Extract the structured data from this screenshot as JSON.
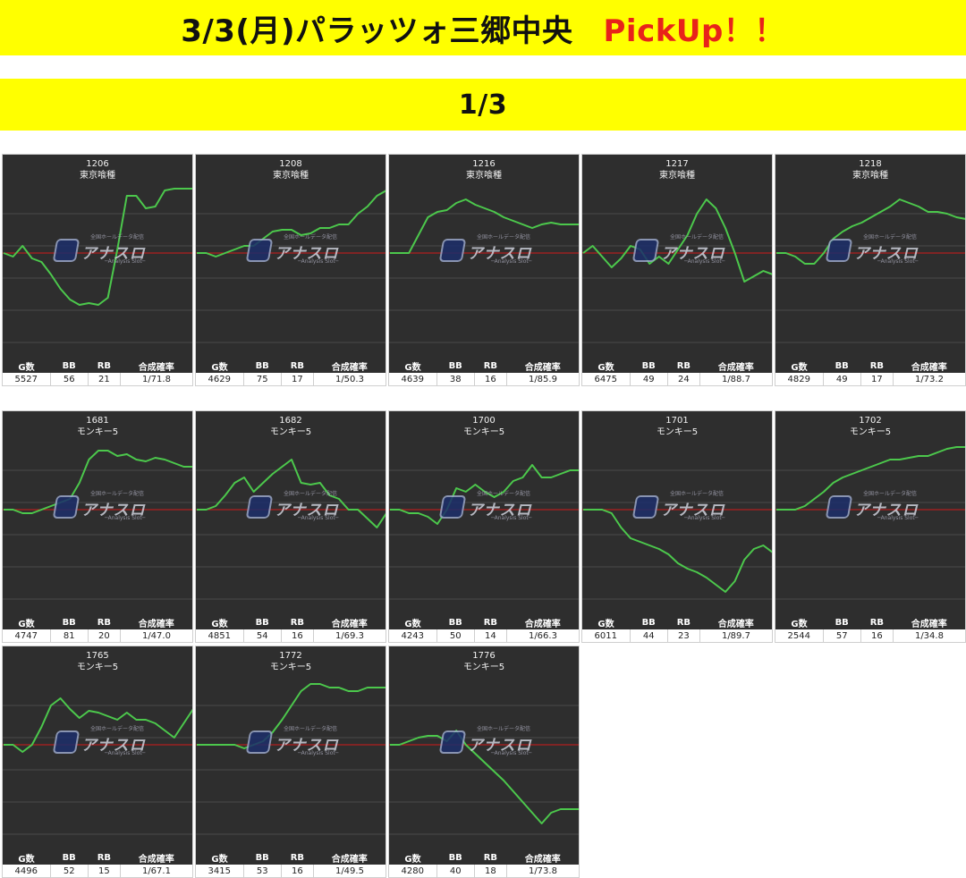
{
  "header": {
    "title": "3/3(月)パラッツォ三郷中央",
    "pickup": "PickUp！！",
    "page": "1/3"
  },
  "table_headers": {
    "g": "G数",
    "bb": "BB",
    "rb": "RB",
    "rate": "合成確率"
  },
  "watermark": {
    "text": "アナスロ",
    "top": "全国ホールデータ配信",
    "sub": "─Analysis Slot─"
  },
  "colors": {
    "line": "#4cc84c",
    "baseline": "#d11a1a",
    "panel": "#2e2e2e",
    "banner": "#ffff00"
  },
  "machines": [
    {
      "no": "1206",
      "name": "東京喰種",
      "g": "5527",
      "bb": "56",
      "rb": "21",
      "rate": "1/71.8",
      "curve": [
        0.4,
        0.42,
        0.36,
        0.43,
        0.45,
        0.52,
        0.6,
        0.66,
        0.69,
        0.68,
        0.69,
        0.65,
        0.38,
        0.08,
        0.08,
        0.15,
        0.14,
        0.05,
        0.04,
        0.04,
        0.04
      ]
    },
    {
      "no": "1208",
      "name": "東京喰種",
      "g": "4629",
      "bb": "75",
      "rb": "17",
      "rate": "1/50.3",
      "curve": [
        0.4,
        0.4,
        0.42,
        0.4,
        0.38,
        0.36,
        0.36,
        0.32,
        0.28,
        0.27,
        0.27,
        0.3,
        0.29,
        0.26,
        0.26,
        0.24,
        0.24,
        0.18,
        0.14,
        0.08,
        0.05
      ]
    },
    {
      "no": "1216",
      "name": "東京喰種",
      "g": "4639",
      "bb": "38",
      "rb": "16",
      "rate": "1/85.9",
      "curve": [
        0.4,
        0.4,
        0.4,
        0.3,
        0.2,
        0.17,
        0.16,
        0.12,
        0.1,
        0.13,
        0.15,
        0.17,
        0.2,
        0.22,
        0.24,
        0.26,
        0.24,
        0.23,
        0.24,
        0.24,
        0.24
      ]
    },
    {
      "no": "1217",
      "name": "東京喰種",
      "g": "6475",
      "bb": "49",
      "rb": "24",
      "rate": "1/88.7",
      "curve": [
        0.4,
        0.36,
        0.42,
        0.48,
        0.43,
        0.36,
        0.38,
        0.46,
        0.42,
        0.46,
        0.38,
        0.3,
        0.18,
        0.1,
        0.15,
        0.26,
        0.4,
        0.56,
        0.53,
        0.5,
        0.52
      ]
    },
    {
      "no": "1218",
      "name": "東京喰種",
      "g": "4829",
      "bb": "49",
      "rb": "17",
      "rate": "1/73.2",
      "curve": [
        0.4,
        0.4,
        0.42,
        0.46,
        0.46,
        0.4,
        0.32,
        0.28,
        0.25,
        0.23,
        0.2,
        0.17,
        0.14,
        0.1,
        0.12,
        0.14,
        0.17,
        0.17,
        0.18,
        0.2,
        0.21
      ]
    },
    {
      "no": "1681",
      "name": "モンキー5",
      "g": "4747",
      "bb": "81",
      "rb": "20",
      "rate": "1/47.0",
      "curve": [
        0.4,
        0.4,
        0.42,
        0.42,
        0.4,
        0.38,
        0.36,
        0.34,
        0.25,
        0.12,
        0.07,
        0.07,
        0.1,
        0.09,
        0.12,
        0.13,
        0.11,
        0.12,
        0.14,
        0.16,
        0.16
      ]
    },
    {
      "no": "1682",
      "name": "モンキー5",
      "g": "4851",
      "bb": "54",
      "rb": "16",
      "rate": "1/69.3",
      "curve": [
        0.4,
        0.4,
        0.38,
        0.32,
        0.25,
        0.22,
        0.3,
        0.25,
        0.2,
        0.16,
        0.12,
        0.25,
        0.26,
        0.25,
        0.32,
        0.34,
        0.4,
        0.4,
        0.45,
        0.5,
        0.42
      ]
    },
    {
      "no": "1700",
      "name": "モンキー5",
      "g": "4243",
      "bb": "50",
      "rb": "14",
      "rate": "1/66.3",
      "curve": [
        0.4,
        0.4,
        0.42,
        0.42,
        0.44,
        0.48,
        0.4,
        0.28,
        0.3,
        0.26,
        0.3,
        0.33,
        0.3,
        0.24,
        0.22,
        0.15,
        0.22,
        0.22,
        0.2,
        0.18,
        0.18
      ]
    },
    {
      "no": "1701",
      "name": "モンキー5",
      "g": "6011",
      "bb": "44",
      "rb": "23",
      "rate": "1/89.7",
      "curve": [
        0.4,
        0.4,
        0.4,
        0.42,
        0.5,
        0.56,
        0.58,
        0.6,
        0.62,
        0.65,
        0.7,
        0.73,
        0.75,
        0.78,
        0.82,
        0.86,
        0.8,
        0.68,
        0.62,
        0.6,
        0.64
      ]
    },
    {
      "no": "1702",
      "name": "モンキー5",
      "g": "2544",
      "bb": "57",
      "rb": "16",
      "rate": "1/34.8",
      "curve": [
        0.4,
        0.4,
        0.4,
        0.38,
        0.34,
        0.3,
        0.25,
        0.22,
        0.2,
        0.18,
        0.16,
        0.14,
        0.12,
        0.12,
        0.11,
        0.1,
        0.1,
        0.08,
        0.06,
        0.05,
        0.05
      ]
    },
    {
      "no": "1765",
      "name": "モンキー5",
      "g": "4496",
      "bb": "52",
      "rb": "15",
      "rate": "1/67.1",
      "curve": [
        0.4,
        0.4,
        0.44,
        0.4,
        0.3,
        0.18,
        0.14,
        0.2,
        0.25,
        0.21,
        0.22,
        0.24,
        0.26,
        0.22,
        0.26,
        0.26,
        0.28,
        0.32,
        0.36,
        0.28,
        0.2
      ]
    },
    {
      "no": "1772",
      "name": "モンキー5",
      "g": "3415",
      "bb": "53",
      "rb": "16",
      "rate": "1/49.5",
      "curve": [
        0.4,
        0.4,
        0.4,
        0.4,
        0.4,
        0.42,
        0.4,
        0.38,
        0.33,
        0.26,
        0.18,
        0.1,
        0.06,
        0.06,
        0.08,
        0.08,
        0.1,
        0.1,
        0.08,
        0.08,
        0.08
      ]
    },
    {
      "no": "1776",
      "name": "モンキー5",
      "g": "4280",
      "bb": "40",
      "rb": "18",
      "rate": "1/73.8",
      "curve": [
        0.4,
        0.4,
        0.38,
        0.36,
        0.35,
        0.35,
        0.38,
        0.32,
        0.4,
        0.45,
        0.5,
        0.55,
        0.6,
        0.66,
        0.72,
        0.78,
        0.84,
        0.78,
        0.76,
        0.76,
        0.76
      ]
    }
  ]
}
